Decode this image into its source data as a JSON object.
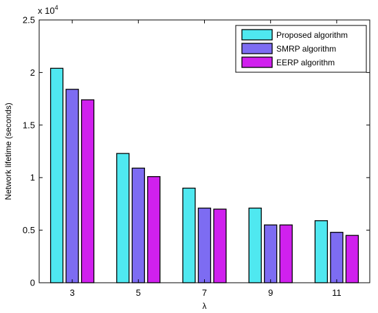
{
  "chart_data": {
    "type": "bar",
    "title": "",
    "xlabel": "λ",
    "ylabel": "Network lifetime (seconds)",
    "y_exponent_label": "x 10",
    "y_exponent_power": "4",
    "categories": [
      "3",
      "5",
      "7",
      "9",
      "11"
    ],
    "series": [
      {
        "name": "Proposed algorithm",
        "color": "#4fe8f0",
        "values": [
          20400,
          12300,
          9000,
          7100,
          5900
        ]
      },
      {
        "name": "SMRP algorithm",
        "color": "#7d6cf2",
        "values": [
          18400,
          10900,
          7100,
          5500,
          4800
        ]
      },
      {
        "name": "EERP algorithm",
        "color": "#d020ee",
        "values": [
          17400,
          10100,
          7000,
          5500,
          4500
        ]
      }
    ],
    "ylim": [
      0,
      25000
    ],
    "yticks": [
      0,
      5000,
      10000,
      15000,
      20000,
      25000
    ],
    "ytick_labels": [
      "0",
      "0.5",
      "1",
      "1.5",
      "2",
      "2.5"
    ],
    "grid": false,
    "legend_position": "top-right"
  }
}
